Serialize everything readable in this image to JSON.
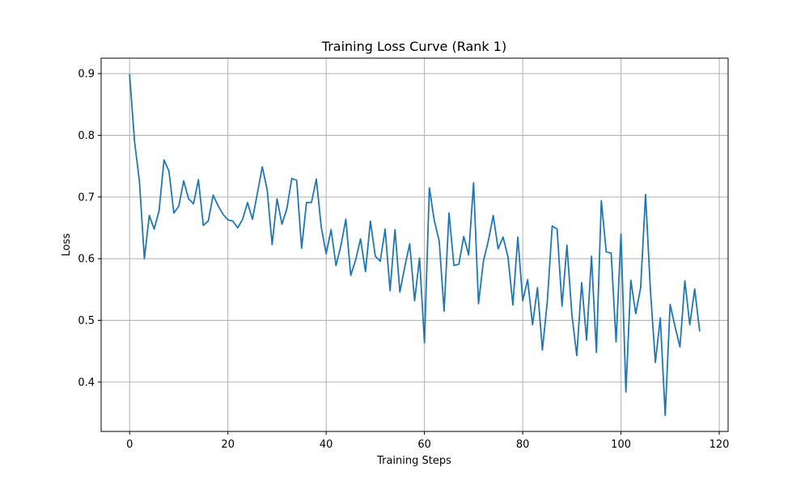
{
  "chart_data": {
    "type": "line",
    "title": "Training Loss Curve (Rank 1)",
    "xlabel": "Training Steps",
    "ylabel": "Loss",
    "xlim": [
      -5.8,
      121.8
    ],
    "ylim": [
      0.32,
      0.925
    ],
    "xticks": [
      0,
      20,
      40,
      60,
      80,
      100,
      120
    ],
    "yticks": [
      0.4,
      0.5,
      0.6,
      0.7,
      0.8,
      0.9
    ],
    "ytick_labels": [
      "0.4",
      "0.5",
      "0.6",
      "0.7",
      "0.8",
      "0.9"
    ],
    "grid": true,
    "legend": "none",
    "line_color": "#1f77b4",
    "series": [
      {
        "x": [
          0,
          1,
          2,
          3,
          4,
          5,
          6,
          7,
          8,
          9,
          10,
          11,
          12,
          13,
          14,
          15,
          16,
          17,
          18,
          19,
          20,
          21,
          22,
          23,
          24,
          25,
          26,
          27,
          28,
          29,
          30,
          31,
          32,
          33,
          34,
          35,
          36,
          37,
          38,
          39,
          40,
          41,
          42,
          43,
          44,
          45,
          46,
          47,
          48,
          49,
          50,
          51,
          52,
          53,
          54,
          55,
          56,
          57,
          58,
          59,
          60,
          61,
          62,
          63,
          64,
          65,
          66,
          67,
          68,
          69,
          70,
          71,
          72,
          73,
          74,
          75,
          76,
          77,
          78,
          79,
          80,
          81,
          82,
          83,
          84,
          85,
          86,
          87,
          88,
          89,
          90,
          91,
          92,
          93,
          94,
          95,
          96,
          97,
          98,
          99,
          100,
          101,
          102,
          103,
          104,
          105,
          106,
          107,
          108,
          109,
          110,
          111,
          112,
          113,
          114,
          115,
          116
        ],
        "values": [
          0.898,
          0.79,
          0.725,
          0.6,
          0.67,
          0.648,
          0.678,
          0.76,
          0.742,
          0.674,
          0.685,
          0.726,
          0.697,
          0.689,
          0.728,
          0.654,
          0.661,
          0.703,
          0.686,
          0.672,
          0.663,
          0.661,
          0.65,
          0.664,
          0.691,
          0.664,
          0.706,
          0.749,
          0.711,
          0.623,
          0.697,
          0.656,
          0.681,
          0.73,
          0.727,
          0.617,
          0.691,
          0.691,
          0.729,
          0.651,
          0.608,
          0.647,
          0.589,
          0.621,
          0.664,
          0.573,
          0.598,
          0.632,
          0.579,
          0.661,
          0.604,
          0.596,
          0.648,
          0.548,
          0.647,
          0.546,
          0.587,
          0.624,
          0.532,
          0.601,
          0.464,
          0.715,
          0.662,
          0.629,
          0.515,
          0.674,
          0.589,
          0.591,
          0.636,
          0.606,
          0.723,
          0.527,
          0.596,
          0.629,
          0.67,
          0.616,
          0.635,
          0.603,
          0.525,
          0.635,
          0.532,
          0.566,
          0.493,
          0.553,
          0.452,
          0.53,
          0.653,
          0.648,
          0.523,
          0.622,
          0.51,
          0.443,
          0.561,
          0.468,
          0.604,
          0.448,
          0.694,
          0.611,
          0.609,
          0.465,
          0.64,
          0.384,
          0.565,
          0.511,
          0.553,
          0.704,
          0.547,
          0.432,
          0.504,
          0.346,
          0.526,
          0.49,
          0.457,
          0.564,
          0.493,
          0.551,
          0.483
        ]
      }
    ]
  }
}
